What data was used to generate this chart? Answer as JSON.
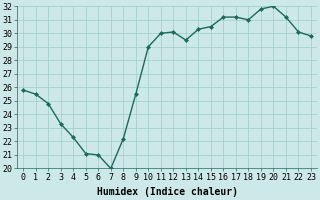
{
  "x": [
    0,
    1,
    2,
    3,
    4,
    5,
    6,
    7,
    8,
    9,
    10,
    11,
    12,
    13,
    14,
    15,
    16,
    17,
    18,
    19,
    20,
    21,
    22,
    23
  ],
  "y": [
    25.8,
    25.5,
    24.8,
    23.3,
    22.3,
    21.1,
    21.0,
    20.0,
    22.2,
    25.5,
    29.0,
    30.0,
    30.1,
    29.5,
    30.3,
    30.5,
    31.2,
    31.2,
    31.0,
    31.8,
    32.0,
    31.2,
    30.1,
    29.8
  ],
  "line_color": "#1a6b5a",
  "marker": "D",
  "marker_size": 2.0,
  "bg_color": "#cce8e8",
  "grid_color": "#a0cccc",
  "xlabel": "Humidex (Indice chaleur)",
  "ylim": [
    20,
    32
  ],
  "xlim_min": -0.5,
  "xlim_max": 23.5,
  "yticks": [
    20,
    21,
    22,
    23,
    24,
    25,
    26,
    27,
    28,
    29,
    30,
    31,
    32
  ],
  "xticks": [
    0,
    1,
    2,
    3,
    4,
    5,
    6,
    7,
    8,
    9,
    10,
    11,
    12,
    13,
    14,
    15,
    16,
    17,
    18,
    19,
    20,
    21,
    22,
    23
  ],
  "xlabel_fontsize": 7,
  "tick_fontsize": 6,
  "line_width": 1.0
}
